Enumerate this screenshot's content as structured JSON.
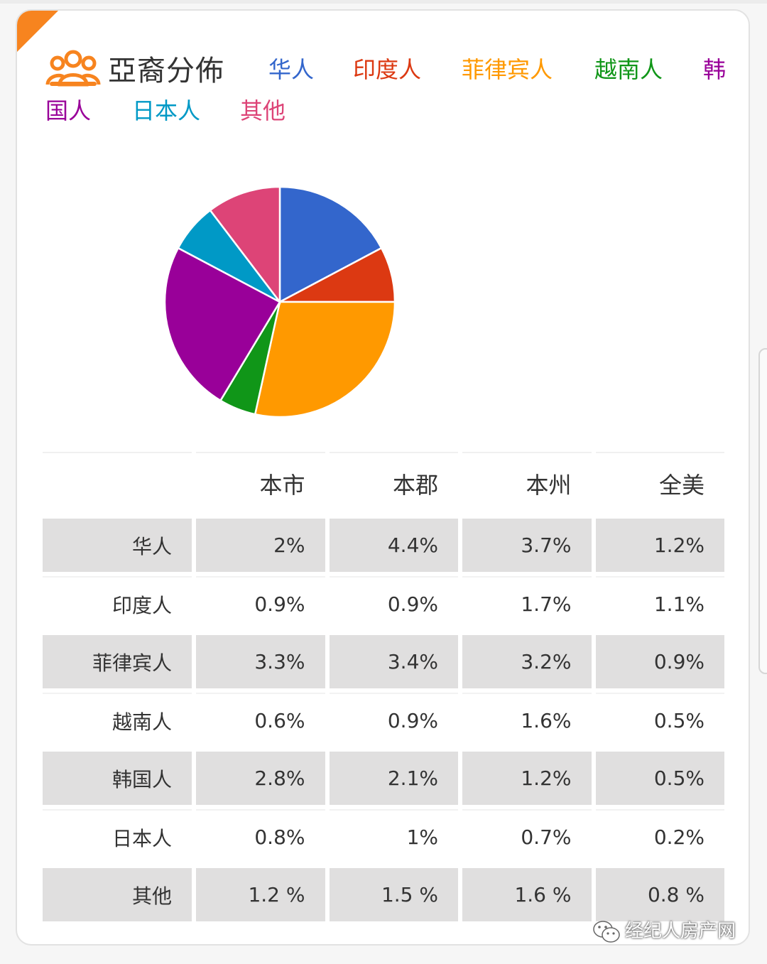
{
  "header": {
    "title": "亞裔分佈",
    "icon": "people-group-icon",
    "accent_color": "#f7841f"
  },
  "legend": [
    {
      "label": "华人",
      "color": "#3366cc"
    },
    {
      "label": "印度人",
      "color": "#dc3912"
    },
    {
      "label": "菲律宾人",
      "color": "#ff9900"
    },
    {
      "label": "越南人",
      "color": "#109618"
    },
    {
      "label": "韩国人",
      "color": "#990099"
    },
    {
      "label": "日本人",
      "color": "#0099c6"
    },
    {
      "label": "其他",
      "color": "#dd4477"
    }
  ],
  "chart_data": {
    "type": "pie",
    "categories": [
      "华人",
      "印度人",
      "菲律宾人",
      "越南人",
      "韩国人",
      "日本人",
      "其他"
    ],
    "values": [
      2,
      0.9,
      3.3,
      0.6,
      2.8,
      0.8,
      1.2
    ],
    "colors": [
      "#3366cc",
      "#dc3912",
      "#ff9900",
      "#109618",
      "#990099",
      "#0099c6",
      "#dd4477"
    ]
  },
  "table": {
    "columns": [
      "",
      "本市",
      "本郡",
      "本州",
      "全美"
    ],
    "rows": [
      {
        "label": "华人",
        "values": [
          "2%",
          "4.4%",
          "3.7%",
          "1.2%"
        ]
      },
      {
        "label": "印度人",
        "values": [
          "0.9%",
          "0.9%",
          "1.7%",
          "1.1%"
        ]
      },
      {
        "label": "菲律宾人",
        "values": [
          "3.3%",
          "3.4%",
          "3.2%",
          "0.9%"
        ]
      },
      {
        "label": "越南人",
        "values": [
          "0.6%",
          "0.9%",
          "1.6%",
          "0.5%"
        ]
      },
      {
        "label": "韩国人",
        "values": [
          "2.8%",
          "2.1%",
          "1.2%",
          "0.5%"
        ]
      },
      {
        "label": "日本人",
        "values": [
          "0.8%",
          "1%",
          "0.7%",
          "0.2%"
        ]
      },
      {
        "label": "其他",
        "values": [
          "1.2 %",
          "1.5 %",
          "1.6 %",
          "0.8 %"
        ]
      }
    ]
  },
  "watermark": {
    "text": "经纪人房产网",
    "icon": "wechat-icon"
  }
}
